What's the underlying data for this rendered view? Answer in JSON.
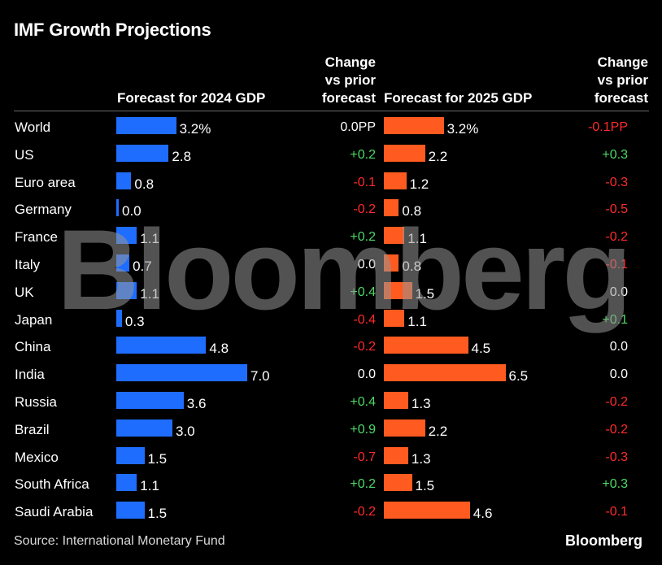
{
  "title": "IMF Growth Projections",
  "headers": {
    "forecast_2024": "Forecast for 2024 GDP",
    "change_2024": [
      "Change",
      "vs prior",
      "forecast"
    ],
    "forecast_2025": "Forecast for 2025 GDP",
    "change_2025": [
      "Change",
      "vs prior",
      "forecast"
    ]
  },
  "colors": {
    "bar_2024": "#1f6dff",
    "bar_2025": "#ff5a1f",
    "positive": "#4cd964",
    "negative": "#ff2a2a"
  },
  "chart_data": {
    "type": "bar",
    "categories": [
      "World",
      "US",
      "Euro area",
      "Germany",
      "France",
      "Italy",
      "UK",
      "Japan",
      "China",
      "India",
      "Russia",
      "Brazil",
      "Mexico",
      "South Africa",
      "Saudi Arabia"
    ],
    "series": [
      {
        "name": "Forecast for 2024 GDP",
        "values": [
          3.2,
          2.8,
          0.8,
          0.0,
          1.1,
          0.7,
          1.1,
          0.3,
          4.8,
          7.0,
          3.6,
          3.0,
          1.5,
          1.1,
          1.5
        ],
        "labels": [
          "3.2%",
          "2.8",
          "0.8",
          "0.0",
          "1.1",
          "0.7",
          "1.1",
          "0.3",
          "4.8",
          "7.0",
          "3.6",
          "3.0",
          "1.5",
          "1.1",
          "1.5"
        ]
      },
      {
        "name": "Forecast for 2025 GDP",
        "values": [
          3.2,
          2.2,
          1.2,
          0.8,
          1.1,
          0.8,
          1.5,
          1.1,
          4.5,
          6.5,
          1.3,
          2.2,
          1.3,
          1.5,
          4.6
        ],
        "labels": [
          "3.2%",
          "2.2",
          "1.2",
          "0.8",
          "1.1",
          "0.8",
          "1.5",
          "1.1",
          "4.5",
          "6.5",
          "1.3",
          "2.2",
          "1.3",
          "1.5",
          "4.6"
        ]
      }
    ],
    "change_2024": [
      "0.0PP",
      "+0.2",
      "-0.1",
      "-0.2",
      "+0.2",
      "0.0",
      "+0.4",
      "-0.4",
      "-0.2",
      "0.0",
      "+0.4",
      "+0.9",
      "-0.7",
      "+0.2",
      "-0.2"
    ],
    "change_2025": [
      "-0.1PP",
      "+0.3",
      "-0.3",
      "-0.5",
      "-0.2",
      "-0.1",
      "0.0",
      "+0.1",
      "0.0",
      "0.0",
      "-0.2",
      "-0.2",
      "-0.3",
      "+0.3",
      "-0.1"
    ]
  },
  "watermark": "Bloomberg",
  "source": "Source: International Monetary Fund",
  "brand": "Bloomberg"
}
